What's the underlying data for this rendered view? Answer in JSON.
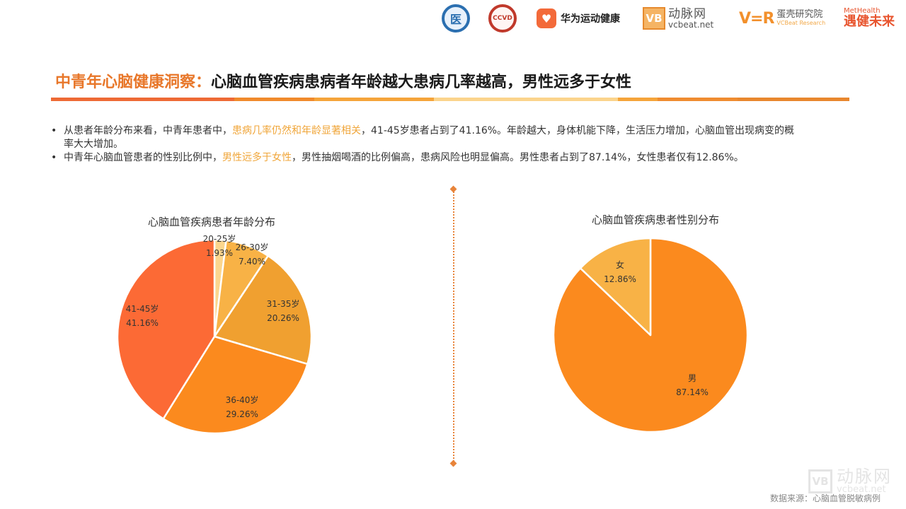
{
  "header": {
    "logos": [
      {
        "name": "blue-seal-logo",
        "glyph": "医"
      },
      {
        "name": "red-seal-logo",
        "glyph": "CCVD"
      },
      {
        "name": "huawei-health-logo",
        "icon": "heart-icon",
        "glyph": "♥",
        "text": "华为运动健康"
      },
      {
        "name": "vcbeat-logo",
        "mark": "VB",
        "cn": "动脉网",
        "en": "vcbeat.net"
      },
      {
        "name": "vcbeat-research-logo",
        "mark": "V=R",
        "cn": "蛋壳研究院",
        "en": "VCBeat Research"
      },
      {
        "name": "methealth-logo",
        "en": "MetHealth",
        "cn": "遇健未来"
      }
    ]
  },
  "title": {
    "accent": "中青年心脑健康洞察：",
    "main": "心脑血管疾病患病者年龄越大患病几率越高，男性远多于女性"
  },
  "title_bar_colors": [
    "#ee6a35",
    "#f08a2c",
    "#f5a43a",
    "#fbd48c",
    "#f5a43a",
    "#ef8c30",
    "#e8872e"
  ],
  "bullets": [
    {
      "before": "从患者年龄分布来看，中青年患者中，",
      "highlight": "患病几率仍然和年龄显著相关",
      "after": "，41-45岁患者占到了41.16%。年龄越大，身体机能下降，生活压力增加，心脑血管出现病变的概率大大增加。"
    },
    {
      "before": "中青年心脑血管患者的性别比例中，",
      "highlight": "男性远多于女性",
      "after": "，男性抽烟喝酒的比例偏高，患病风险也明显偏高。男性患者占到了87.14%，女性患者仅有12.86%。"
    }
  ],
  "chart_data": [
    {
      "type": "pie",
      "title": "心脑血管疾病患者年龄分布",
      "categories": [
        "20-25岁",
        "26-30岁",
        "31-35岁",
        "36-40岁",
        "41-45岁"
      ],
      "values": [
        1.93,
        7.4,
        20.26,
        29.26,
        41.16
      ],
      "labels": [
        "1.93%",
        "7.40%",
        "20.26%",
        "29.26%",
        "41.16%"
      ],
      "colors": [
        "#fbd68e",
        "#f8b246",
        "#f0a030",
        "#fb8a1e",
        "#fc6a35"
      ],
      "start_angle": "12 o'clock",
      "direction": "clockwise",
      "legend": "none"
    },
    {
      "type": "pie",
      "title": "心脑血管疾病患者性别分布",
      "categories": [
        "男",
        "女"
      ],
      "values": [
        87.14,
        12.86
      ],
      "labels": [
        "87.14%",
        "12.86%"
      ],
      "colors": [
        "#fb8a1e",
        "#f8b246"
      ],
      "start_angle": "12 o'clock",
      "direction": "clockwise",
      "legend": "none"
    }
  ],
  "footer": {
    "source": "数据来源：心脑血管脱敏病例",
    "watermark_mark": "VB",
    "watermark_cn": "动脉网",
    "watermark_en": "vcbeat.net"
  }
}
